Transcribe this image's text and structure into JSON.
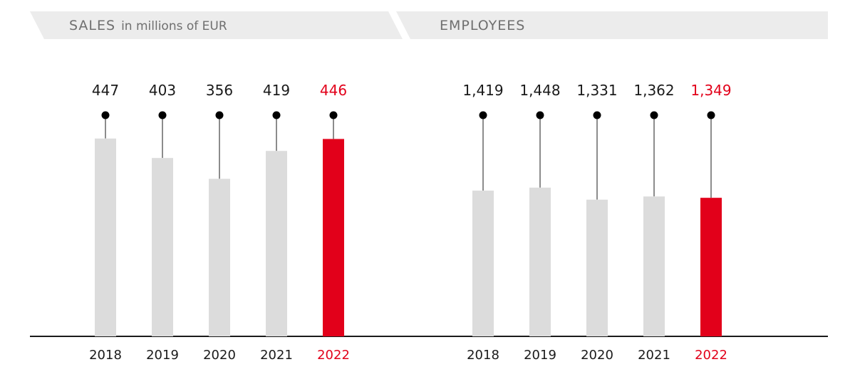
{
  "header": {
    "sales_title": "SALES",
    "sales_subtitle": "in millions of EUR",
    "employees_title": "EMPLOYEES"
  },
  "colors": {
    "bar": "#dcdcdc",
    "highlight": "#e2001a",
    "text": "#1a1a1a",
    "header_bg": "#ececec",
    "header_text": "#6f6f6f"
  },
  "chart_data": [
    {
      "type": "bar",
      "categories": [
        "2018",
        "2019",
        "2020",
        "2021",
        "2022"
      ],
      "values": [
        447,
        403,
        356,
        419,
        446
      ],
      "value_labels": [
        "447",
        "403",
        "356",
        "419",
        "446"
      ],
      "highlight_index": 4,
      "ylim": [
        0,
        760
      ]
    },
    {
      "type": "bar",
      "categories": [
        "2018",
        "2019",
        "2020",
        "2021",
        "2022"
      ],
      "values": [
        1419,
        1448,
        1331,
        1362,
        1349
      ],
      "value_labels": [
        "1,419",
        "1,448",
        "1,331",
        "1,362",
        "1,349"
      ],
      "highlight_index": 4,
      "ylim": [
        0,
        3275
      ]
    }
  ]
}
